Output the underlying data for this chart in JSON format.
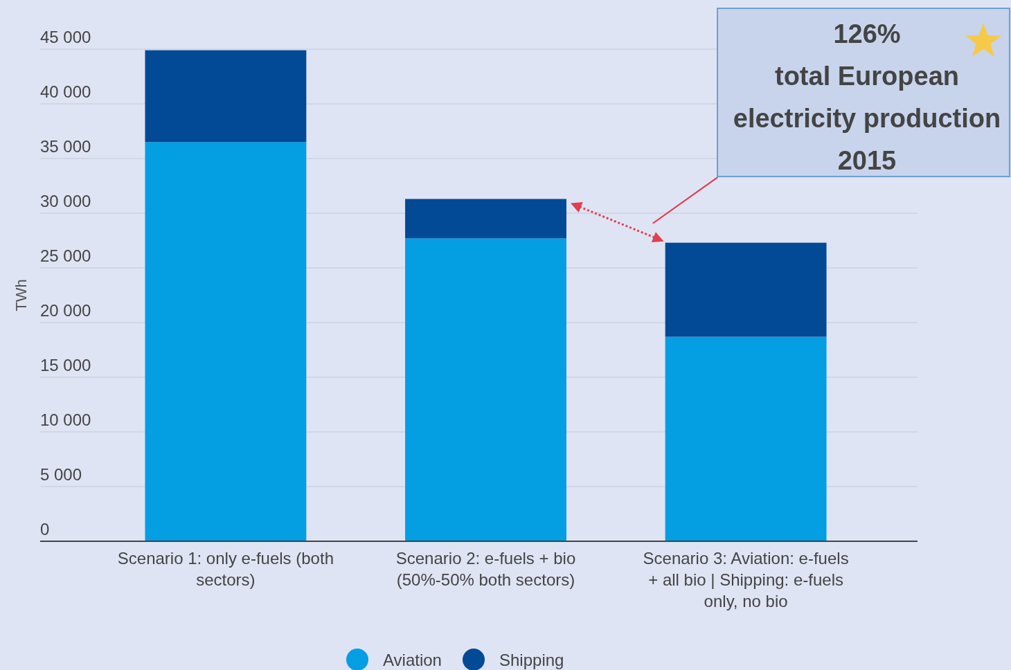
{
  "chart_data": {
    "type": "bar",
    "stacked": true,
    "ylabel": "TWh",
    "categories": [
      "Scenario 1: only e-fuels (both sectors)",
      "Scenario 2: e-fuels + bio (50%-50% both sectors)",
      "Scenario 3: Aviation: e-fuels + all bio | Shipping: e-fuels only, no bio"
    ],
    "series": [
      {
        "name": "Aviation",
        "color": "#049ee3",
        "values": [
          36500,
          27700,
          18700
        ]
      },
      {
        "name": "Shipping",
        "color": "#034a96",
        "values": [
          8400,
          3600,
          8600
        ]
      }
    ],
    "ylim": [
      0,
      45000
    ],
    "yticks": [
      {
        "value": 0,
        "label": "0"
      },
      {
        "value": 5000,
        "label": "5 000"
      },
      {
        "value": 10000,
        "label": "10 000"
      },
      {
        "value": 15000,
        "label": "15 000"
      },
      {
        "value": 20000,
        "label": "20 000"
      },
      {
        "value": 25000,
        "label": "25 000"
      },
      {
        "value": 30000,
        "label": "30 000"
      },
      {
        "value": 35000,
        "label": "35 000"
      },
      {
        "value": 40000,
        "label": "40 000"
      },
      {
        "value": 45000,
        "label": "45 000"
      }
    ],
    "grid": "y",
    "legend": "bottom",
    "annotations": [
      "126%\ntotal European\nelectricity production\n2015"
    ]
  }
}
